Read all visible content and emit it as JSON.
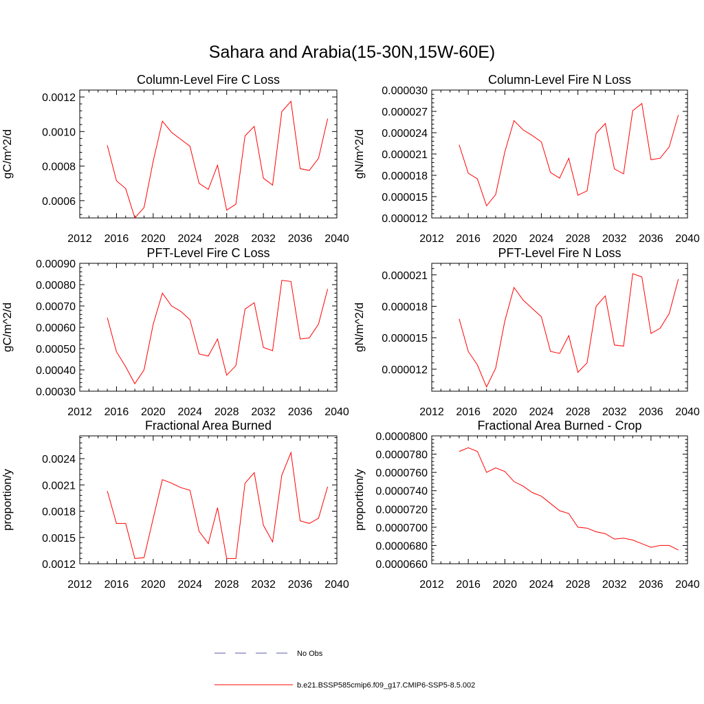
{
  "page": {
    "title": "Sahara and Arabia(15-30N,15W-60E)"
  },
  "legend": {
    "items": [
      {
        "label": "No Obs",
        "color": "#5a5aaa",
        "style": "dashed"
      },
      {
        "label": "b.e21.BSSP585cmip6.f09_g17.CMIP6-SSP5-8.5.002",
        "color": "#ff0000",
        "style": "solid"
      }
    ]
  },
  "chart_data": [
    {
      "type": "line",
      "title": "Column-Level Fire C Loss",
      "ylabel": "gC/m^2/d",
      "xlim": [
        2012,
        2040
      ],
      "xticks": [
        2012,
        2016,
        2020,
        2024,
        2028,
        2032,
        2036,
        2040
      ],
      "xtick_labels": [
        "2012",
        "2016",
        "2020",
        "2024",
        "2028",
        "2032",
        "2036",
        "2040"
      ],
      "ylim": [
        0.0005,
        0.00124
      ],
      "yticks": [
        0.0006,
        0.0008,
        0.001,
        0.0012
      ],
      "ytick_labels": [
        "0.0006",
        "0.0008",
        "0.0010",
        "0.0012"
      ],
      "x": [
        2015,
        2016,
        2017,
        2018,
        2019,
        2020,
        2021,
        2022,
        2023,
        2024,
        2025,
        2026,
        2027,
        2028,
        2029,
        2030,
        2031,
        2032,
        2033,
        2034,
        2035,
        2036,
        2037,
        2038,
        2039
      ],
      "series": [
        {
          "color": "#ff0000",
          "values": [
            0.00092,
            0.000715,
            0.00067,
            0.0005,
            0.00056,
            0.00083,
            0.00106,
            0.000995,
            0.000955,
            0.000915,
            0.0007,
            0.000665,
            0.000805,
            0.000545,
            0.00058,
            0.000975,
            0.00103,
            0.00073,
            0.00069,
            0.001115,
            0.001175,
            0.000785,
            0.000775,
            0.000845,
            0.001075
          ]
        }
      ]
    },
    {
      "type": "line",
      "title": "Column-Level Fire N Loss",
      "ylabel": "gN/m^2/d",
      "xlim": [
        2012,
        2040
      ],
      "xticks": [
        2012,
        2016,
        2020,
        2024,
        2028,
        2032,
        2036,
        2040
      ],
      "xtick_labels": [
        "2012",
        "2016",
        "2020",
        "2024",
        "2028",
        "2032",
        "2036",
        "2040"
      ],
      "ylim": [
        1.2e-05,
        3e-05
      ],
      "yticks": [
        1.2e-05,
        1.5e-05,
        1.8e-05,
        2.1e-05,
        2.4e-05,
        2.7e-05,
        3e-05
      ],
      "ytick_labels": [
        "0.000012",
        "0.000015",
        "0.000018",
        "0.000021",
        "0.000024",
        "0.000027",
        "0.000030"
      ],
      "x": [
        2015,
        2016,
        2017,
        2018,
        2019,
        2020,
        2021,
        2022,
        2023,
        2024,
        2025,
        2026,
        2027,
        2028,
        2029,
        2030,
        2031,
        2032,
        2033,
        2034,
        2035,
        2036,
        2037,
        2038,
        2039
      ],
      "series": [
        {
          "color": "#ff0000",
          "values": [
            2.23e-05,
            1.83e-05,
            1.75e-05,
            1.37e-05,
            1.53e-05,
            2.13e-05,
            2.57e-05,
            2.44e-05,
            2.36e-05,
            2.27e-05,
            1.84e-05,
            1.76e-05,
            2.04e-05,
            1.52e-05,
            1.58e-05,
            2.39e-05,
            2.53e-05,
            1.89e-05,
            1.82e-05,
            2.71e-05,
            2.81e-05,
            2.02e-05,
            2.04e-05,
            2.2e-05,
            2.65e-05
          ]
        }
      ]
    },
    {
      "type": "line",
      "title": "PFT-Level Fire C Loss",
      "ylabel": "gC/m^2/d",
      "xlim": [
        2012,
        2040
      ],
      "xticks": [
        2012,
        2016,
        2020,
        2024,
        2028,
        2032,
        2036,
        2040
      ],
      "xtick_labels": [
        "2012",
        "2016",
        "2020",
        "2024",
        "2028",
        "2032",
        "2036",
        "2040"
      ],
      "ylim": [
        0.0003,
        0.0009
      ],
      "yticks": [
        0.0003,
        0.0004,
        0.0005,
        0.0006,
        0.0007,
        0.0008,
        0.0009
      ],
      "ytick_labels": [
        "0.00030",
        "0.00040",
        "0.00050",
        "0.00060",
        "0.00070",
        "0.00080",
        "0.00090"
      ],
      "x": [
        2015,
        2016,
        2017,
        2018,
        2019,
        2020,
        2021,
        2022,
        2023,
        2024,
        2025,
        2026,
        2027,
        2028,
        2029,
        2030,
        2031,
        2032,
        2033,
        2034,
        2035,
        2036,
        2037,
        2038,
        2039
      ],
      "series": [
        {
          "color": "#ff0000",
          "values": [
            0.000645,
            0.000485,
            0.000415,
            0.000335,
            0.0004,
            0.000615,
            0.00076,
            0.0007,
            0.000675,
            0.000635,
            0.000475,
            0.000465,
            0.000545,
            0.000375,
            0.00042,
            0.000685,
            0.000715,
            0.000505,
            0.00049,
            0.00082,
            0.000815,
            0.000545,
            0.00055,
            0.000615,
            0.00078
          ]
        }
      ]
    },
    {
      "type": "line",
      "title": "PFT-Level Fire N Loss",
      "ylabel": "gN/m^2/d",
      "xlim": [
        2012,
        2040
      ],
      "xticks": [
        2012,
        2016,
        2020,
        2024,
        2028,
        2032,
        2036,
        2040
      ],
      "xtick_labels": [
        "2012",
        "2016",
        "2020",
        "2024",
        "2028",
        "2032",
        "2036",
        "2040"
      ],
      "ylim": [
        9.9e-06,
        2.21e-05
      ],
      "yticks": [
        1.2e-05,
        1.5e-05,
        1.8e-05,
        2.1e-05
      ],
      "ytick_labels": [
        "0.000012",
        "0.000015",
        "0.000018",
        "0.000021"
      ],
      "x": [
        2015,
        2016,
        2017,
        2018,
        2019,
        2020,
        2021,
        2022,
        2023,
        2024,
        2025,
        2026,
        2027,
        2028,
        2029,
        2030,
        2031,
        2032,
        2033,
        2034,
        2035,
        2036,
        2037,
        2038,
        2039
      ],
      "series": [
        {
          "color": "#ff0000",
          "values": [
            1.68e-05,
            1.37e-05,
            1.24e-05,
            1.03e-05,
            1.21e-05,
            1.66e-05,
            1.98e-05,
            1.86e-05,
            1.78e-05,
            1.7e-05,
            1.37e-05,
            1.35e-05,
            1.52e-05,
            1.17e-05,
            1.26e-05,
            1.8e-05,
            1.9e-05,
            1.43e-05,
            1.42e-05,
            2.11e-05,
            2.08e-05,
            1.54e-05,
            1.59e-05,
            1.73e-05,
            2.06e-05
          ]
        }
      ]
    },
    {
      "type": "line",
      "title": "Fractional Area Burned",
      "ylabel": "proportion/y",
      "xlim": [
        2012,
        2040
      ],
      "xticks": [
        2012,
        2016,
        2020,
        2024,
        2028,
        2032,
        2036,
        2040
      ],
      "xtick_labels": [
        "2012",
        "2016",
        "2020",
        "2024",
        "2028",
        "2032",
        "2036",
        "2040"
      ],
      "ylim": [
        0.0012,
        0.00266
      ],
      "yticks": [
        0.0012,
        0.0015,
        0.0018,
        0.0021,
        0.0024
      ],
      "ytick_labels": [
        "0.0012",
        "0.0015",
        "0.0018",
        "0.0021",
        "0.0024"
      ],
      "x": [
        2015,
        2016,
        2017,
        2018,
        2019,
        2020,
        2021,
        2022,
        2023,
        2024,
        2025,
        2026,
        2027,
        2028,
        2029,
        2030,
        2031,
        2032,
        2033,
        2034,
        2035,
        2036,
        2037,
        2038,
        2039
      ],
      "series": [
        {
          "color": "#ff0000",
          "values": [
            0.00203,
            0.00166,
            0.00166,
            0.00126,
            0.00127,
            0.00172,
            0.00216,
            0.00212,
            0.00207,
            0.00204,
            0.00157,
            0.00143,
            0.00184,
            0.00126,
            0.00126,
            0.00212,
            0.00224,
            0.00164,
            0.00145,
            0.00221,
            0.00247,
            0.00169,
            0.00166,
            0.00172,
            0.00208
          ]
        }
      ]
    },
    {
      "type": "line",
      "title": "Fractional Area Burned - Crop",
      "ylabel": "proportion/y",
      "xlim": [
        2012,
        2040
      ],
      "xticks": [
        2012,
        2016,
        2020,
        2024,
        2028,
        2032,
        2036,
        2040
      ],
      "xtick_labels": [
        "2012",
        "2016",
        "2020",
        "2024",
        "2028",
        "2032",
        "2036",
        "2040"
      ],
      "ylim": [
        6.6e-05,
        8e-05
      ],
      "yticks": [
        6.6e-05,
        6.8e-05,
        7e-05,
        7.2e-05,
        7.4e-05,
        7.6e-05,
        7.8e-05,
        8e-05
      ],
      "ytick_labels": [
        "0.0000660",
        "0.0000680",
        "0.0000700",
        "0.0000720",
        "0.0000740",
        "0.0000760",
        "0.0000780",
        "0.0000800"
      ],
      "x": [
        2015,
        2016,
        2017,
        2018,
        2019,
        2020,
        2021,
        2022,
        2023,
        2024,
        2025,
        2026,
        2027,
        2028,
        2029,
        2030,
        2031,
        2032,
        2033,
        2034,
        2035,
        2036,
        2037,
        2038,
        2039
      ],
      "series": [
        {
          "color": "#ff0000",
          "values": [
            7.83e-05,
            7.87e-05,
            7.83e-05,
            7.6e-05,
            7.65e-05,
            7.61e-05,
            7.5e-05,
            7.45e-05,
            7.38e-05,
            7.34e-05,
            7.26e-05,
            7.18e-05,
            7.15e-05,
            7e-05,
            6.99e-05,
            6.95e-05,
            6.93e-05,
            6.87e-05,
            6.88e-05,
            6.86e-05,
            6.82e-05,
            6.78e-05,
            6.8e-05,
            6.8e-05,
            6.75e-05
          ]
        }
      ]
    }
  ]
}
